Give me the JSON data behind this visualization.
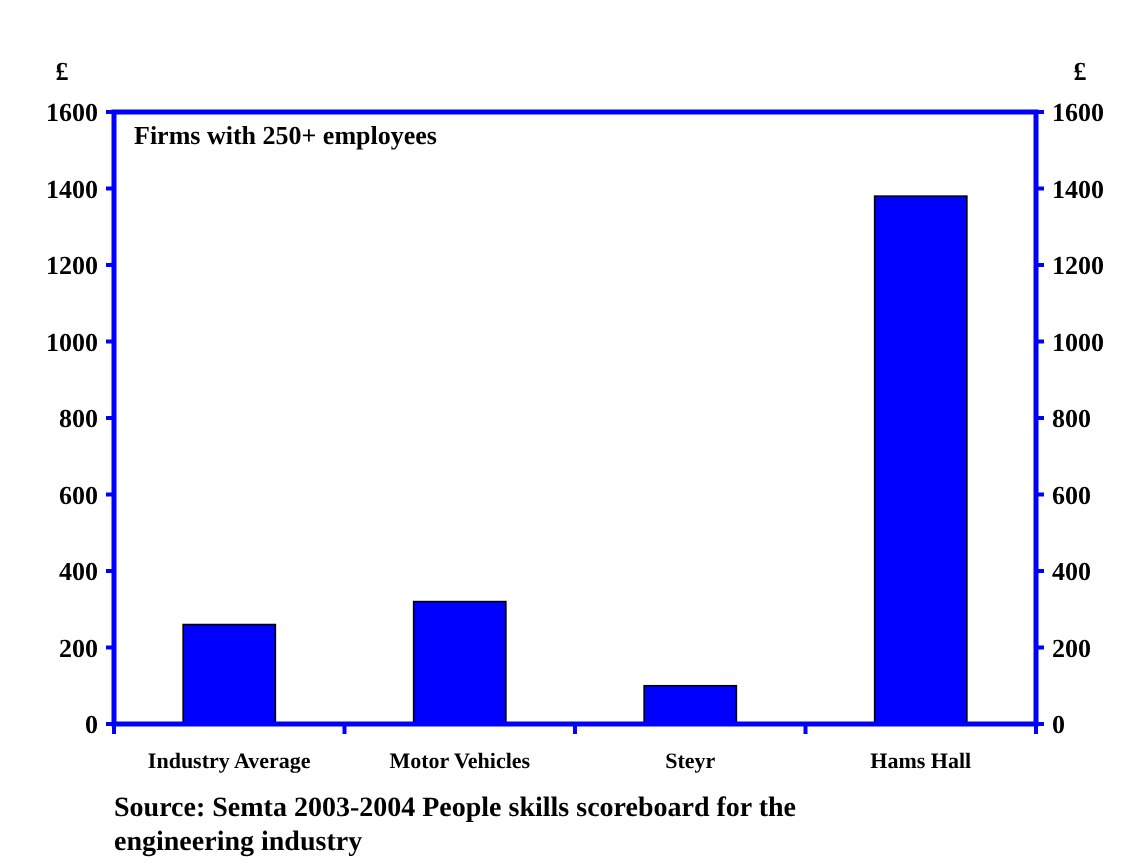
{
  "chart_data": {
    "type": "bar",
    "ylabel": "£",
    "y2label": "£",
    "categories": [
      "Industry Average",
      "Motor Vehicles",
      "Steyr",
      "Hams Hall"
    ],
    "values": [
      260,
      320,
      100,
      1380
    ],
    "color": "#0000ff",
    "ylim": [
      0,
      1600
    ],
    "yticks": [
      0,
      200,
      400,
      600,
      800,
      1000,
      1200,
      1400,
      1600
    ],
    "y2lim": [
      0,
      1600
    ],
    "y2ticks": [
      0,
      200,
      400,
      600,
      800,
      1000,
      1200,
      1400,
      1600
    ],
    "grid": false,
    "annotations": [
      "Firms with 250+ employees",
      "Source: Semta 2003-2004 People skills scoreboard for the engineering industry"
    ]
  }
}
